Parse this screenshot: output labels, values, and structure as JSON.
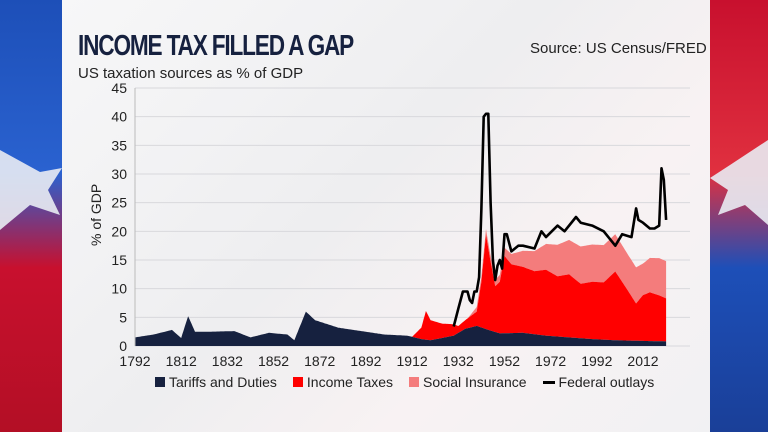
{
  "header": {
    "title": "INCOME TAX FILLED A GAP",
    "source": "Source: US Census/FRED",
    "subtitle": "US taxation sources as % of GDP"
  },
  "chart_data": {
    "type": "area",
    "title": "INCOME TAX FILLED A GAP",
    "subtitle": "US taxation sources as % of GDP",
    "ylabel": "% of GDP",
    "xlabel": "",
    "ylim": [
      0,
      45
    ],
    "xlim": [
      1792,
      2024
    ],
    "yticks": [
      "0",
      "5",
      "10",
      "15",
      "20",
      "25",
      "30",
      "35",
      "40",
      "45"
    ],
    "xticks": [
      "1792",
      "1812",
      "1832",
      "1852",
      "1872",
      "1892",
      "1912",
      "1932",
      "1952",
      "1972",
      "1992",
      "2012"
    ],
    "grid": true,
    "stacked": true,
    "legend_position": "bottom",
    "colors": {
      "tariffs": "#16213f",
      "income": "#ff0000",
      "social": "#f47c7c",
      "outlays": "#000000"
    },
    "series": [
      {
        "name": "Tariffs and Duties",
        "key": "tariffs",
        "type": "area",
        "x": [
          1792,
          1800,
          1808,
          1812,
          1815,
          1818,
          1825,
          1835,
          1842,
          1850,
          1858,
          1861,
          1866,
          1870,
          1880,
          1890,
          1900,
          1910,
          1916,
          1920,
          1930,
          1935,
          1940,
          1945,
          1950,
          1960,
          1970,
          1980,
          1990,
          2000,
          2010,
          2022
        ],
        "y": [
          1.5,
          2.0,
          2.8,
          1.4,
          5.2,
          2.5,
          2.5,
          2.6,
          1.5,
          2.3,
          2.0,
          1.0,
          6.0,
          4.5,
          3.2,
          2.6,
          2.0,
          1.8,
          1.2,
          1.0,
          1.8,
          3.0,
          3.5,
          2.8,
          2.2,
          2.3,
          1.8,
          1.5,
          1.2,
          1.0,
          0.9,
          0.8
        ]
      },
      {
        "name": "Income Taxes",
        "key": "income",
        "type": "area",
        "x": [
          1912,
          1913,
          1916,
          1918,
          1920,
          1925,
          1930,
          1932,
          1935,
          1940,
          1942,
          1944,
          1946,
          1948,
          1950,
          1952,
          1955,
          1960,
          1965,
          1970,
          1975,
          1980,
          1985,
          1990,
          1995,
          2000,
          2005,
          2009,
          2012,
          2015,
          2019,
          2022
        ],
        "y": [
          0,
          0.5,
          2.0,
          5.0,
          3.5,
          2.5,
          2.0,
          1.2,
          1.5,
          2.5,
          8.0,
          16.5,
          12.0,
          8.0,
          9.0,
          13.5,
          12.0,
          11.5,
          11.0,
          11.5,
          10.5,
          11.0,
          9.5,
          10.0,
          10.0,
          12.0,
          9.0,
          6.5,
          8.0,
          8.5,
          8.0,
          7.5
        ]
      },
      {
        "name": "Social Insurance",
        "key": "social",
        "type": "area",
        "x": [
          1936,
          1940,
          1945,
          1950,
          1955,
          1960,
          1965,
          1970,
          1975,
          1980,
          1985,
          1990,
          1995,
          2000,
          2005,
          2009,
          2012,
          2015,
          2019,
          2022
        ],
        "y": [
          0,
          0.8,
          1.0,
          1.2,
          1.8,
          2.8,
          3.5,
          4.5,
          5.5,
          6.0,
          6.5,
          6.5,
          6.5,
          6.5,
          6.3,
          6.3,
          5.5,
          6.0,
          6.5,
          6.5
        ]
      },
      {
        "name": "Federal outlays",
        "key": "outlays",
        "type": "line",
        "x": [
          1930,
          1932,
          1934,
          1936,
          1937,
          1938,
          1939,
          1940,
          1941,
          1942,
          1943,
          1944,
          1945,
          1946,
          1947,
          1948,
          1949,
          1950,
          1951,
          1952,
          1953,
          1955,
          1958,
          1960,
          1965,
          1968,
          1970,
          1975,
          1978,
          1983,
          1985,
          1990,
          1995,
          2000,
          2003,
          2007,
          2009,
          2010,
          2012,
          2015,
          2017,
          2019,
          2020,
          2021,
          2022
        ],
        "y": [
          3.4,
          6.5,
          9.5,
          9.5,
          8.0,
          7.5,
          9.5,
          9.5,
          12,
          24,
          40,
          40.5,
          40.5,
          25,
          15,
          11.5,
          14,
          15,
          13.5,
          19.5,
          19.5,
          16.5,
          17.5,
          17.5,
          17,
          20,
          19,
          21,
          20,
          22.5,
          21.5,
          21,
          20,
          17.5,
          19.5,
          19,
          24,
          22,
          21.5,
          20.5,
          20.5,
          21,
          31,
          29,
          22
        ]
      }
    ]
  }
}
